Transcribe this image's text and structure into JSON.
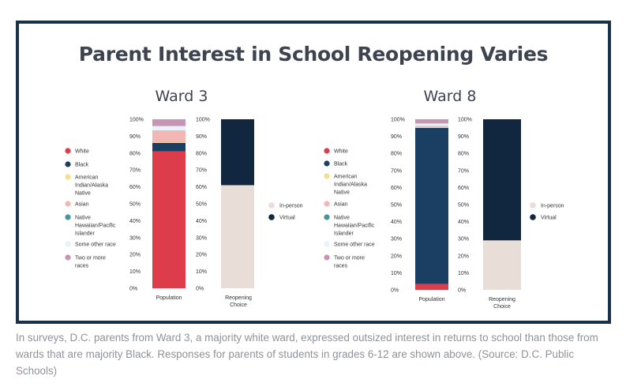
{
  "chart_title": "Parent Interest in School Reopening Varies",
  "caption": "In surveys, D.C. parents from Ward 3, a majority white ward, expressed outsized interest in returns to school than those from wards that are majority Black. Responses for parents of students in grades 6-12 are shown above. (Source: D.C. Public Schools)",
  "colors": {
    "frame": "#1a3247",
    "white": "#dd3d4b",
    "black": "#1a3f62",
    "american_indian": "#f4df8e",
    "asian": "#f2b7b4",
    "native_hawaiian": "#45959d",
    "some_other": "#e8f2fa",
    "two_or_more": "#c595b3",
    "in_person": "#e9ddd7",
    "virtual": "#11273f"
  },
  "legend_population": [
    {
      "label": "White",
      "color_key": "white"
    },
    {
      "label": "Black",
      "color_key": "black"
    },
    {
      "label": "American Indian/Alaska Native",
      "color_key": "american_indian"
    },
    {
      "label": "Asian",
      "color_key": "asian"
    },
    {
      "label": "Native Hawaiian/Pacific Islander",
      "color_key": "native_hawaiian"
    },
    {
      "label": "Some other race",
      "color_key": "some_other"
    },
    {
      "label": "Two or more races",
      "color_key": "two_or_more"
    }
  ],
  "legend_choice": [
    {
      "label": "In-person",
      "color_key": "in_person"
    },
    {
      "label": "Virtual",
      "color_key": "virtual"
    }
  ],
  "chart_data": [
    {
      "type": "bar",
      "stacked": true,
      "title": "Ward 3",
      "ylim": [
        0,
        100
      ],
      "yticks": [
        "0%",
        "10%",
        "20%",
        "30%",
        "40%",
        "50%",
        "60%",
        "70%",
        "80%",
        "90%",
        "100%"
      ],
      "categories": [
        "Population",
        "Reopening Choice"
      ],
      "series": [
        {
          "name": "White",
          "values": [
            81,
            null
          ]
        },
        {
          "name": "Black",
          "values": [
            5,
            null
          ]
        },
        {
          "name": "American Indian/Alaska Native",
          "values": [
            0.3,
            null
          ]
        },
        {
          "name": "Asian",
          "values": [
            7,
            null
          ]
        },
        {
          "name": "Native Hawaiian/Pacific Islander",
          "values": [
            0.1,
            null
          ]
        },
        {
          "name": "Some other race",
          "values": [
            2.6,
            null
          ]
        },
        {
          "name": "Two or more races",
          "values": [
            4,
            null
          ]
        },
        {
          "name": "In-person",
          "values": [
            null,
            61
          ]
        },
        {
          "name": "Virtual",
          "values": [
            null,
            39
          ]
        }
      ]
    },
    {
      "type": "bar",
      "stacked": true,
      "title": "Ward 8",
      "ylim": [
        0,
        100
      ],
      "yticks": [
        "0%",
        "10%",
        "20%",
        "30%",
        "40%",
        "50%",
        "60%",
        "70%",
        "80%",
        "90%",
        "100%"
      ],
      "categories": [
        "Population",
        "Reopening Choice"
      ],
      "series": [
        {
          "name": "White",
          "values": [
            3.5,
            null
          ]
        },
        {
          "name": "Black",
          "values": [
            91.5,
            null
          ]
        },
        {
          "name": "American Indian/Alaska Native",
          "values": [
            0.5,
            null
          ]
        },
        {
          "name": "Asian",
          "values": [
            0.3,
            null
          ]
        },
        {
          "name": "Native Hawaiian/Pacific Islander",
          "values": [
            0.2,
            null
          ]
        },
        {
          "name": "Some other race",
          "values": [
            1.5,
            null
          ]
        },
        {
          "name": "Two or more races",
          "values": [
            2.5,
            null
          ]
        },
        {
          "name": "In-person",
          "values": [
            null,
            29
          ]
        },
        {
          "name": "Virtual",
          "values": [
            null,
            71
          ]
        }
      ]
    }
  ]
}
